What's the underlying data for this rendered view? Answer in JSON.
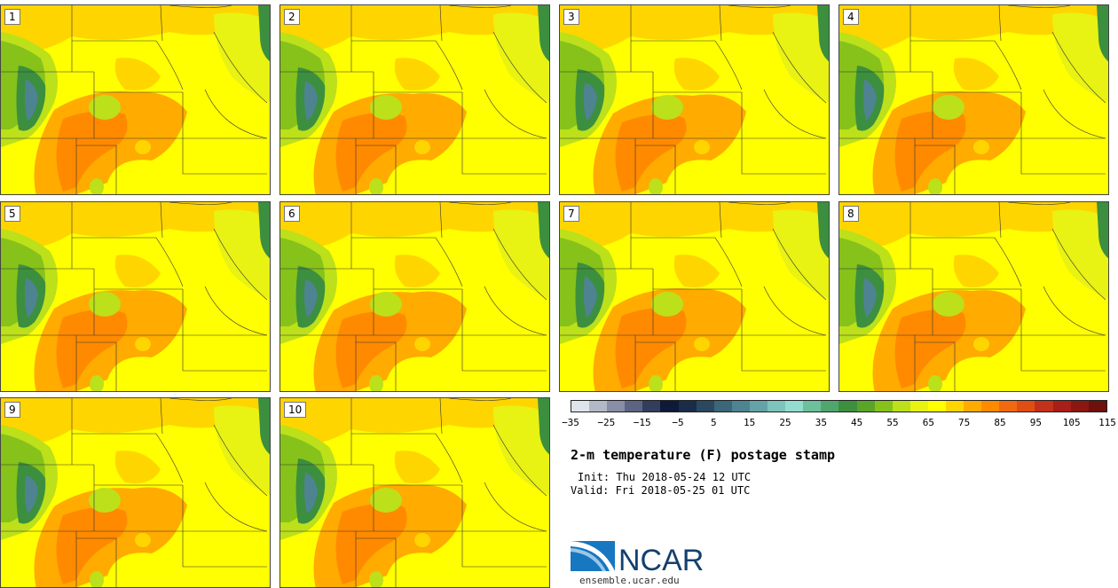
{
  "panels": [
    "1",
    "2",
    "3",
    "4",
    "5",
    "6",
    "7",
    "8",
    "9",
    "10"
  ],
  "colorbar": {
    "colors": [
      "#dfe3ea",
      "#b3b8c6",
      "#878ea5",
      "#5b6482",
      "#333d5e",
      "#0d1a38",
      "#1a2c48",
      "#2a4860",
      "#3c6679",
      "#4e8391",
      "#64a3a7",
      "#7cc4bc",
      "#92ddcf",
      "#6cc19a",
      "#4fa76e",
      "#3c8f3e",
      "#5aa528",
      "#86c21a",
      "#bce01a",
      "#e8f213",
      "#ffff00",
      "#ffd500",
      "#ffab00",
      "#ff8a00",
      "#f26a10",
      "#e04e14",
      "#c4311a",
      "#a81e18",
      "#8c1612",
      "#6e100c"
    ],
    "ticks": [
      "−35",
      "−25",
      "−15",
      "−5",
      "5",
      "15",
      "25",
      "35",
      "45",
      "55",
      "65",
      "75",
      "85",
      "95",
      "105",
      "115"
    ]
  },
  "title": "2-m temperature (F) postage stamp",
  "init": "Init: Thu 2018-05-24 12 UTC",
  "valid": "Valid: Fri 2018-05-25 01 UTC",
  "logo_text": "NCAR",
  "website": "ensemble.ucar.edu"
}
